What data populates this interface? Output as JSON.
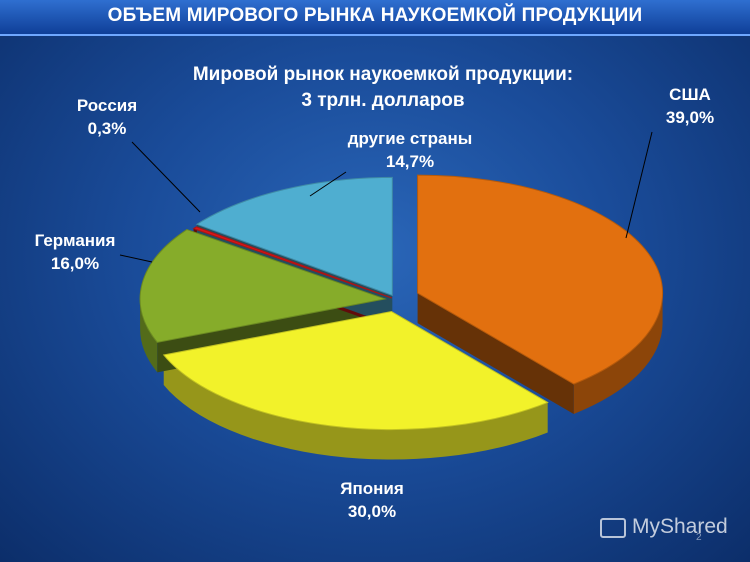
{
  "header": {
    "title": "ОБЪЕМ МИРОВОГО РЫНКА НАУКОЕМКОЙ ПРОДУКЦИИ"
  },
  "chart_data": {
    "type": "pie",
    "title": "Мировой рынок наукоемкой продукции:",
    "subtitle": "3 трлн. долларов",
    "slices": [
      {
        "name": "США",
        "value": 39.0,
        "label": "39,0%",
        "color": "#e2700f"
      },
      {
        "name": "Япония",
        "value": 30.0,
        "label": "30,0%",
        "color": "#f2f22a"
      },
      {
        "name": "Германия",
        "value": 16.0,
        "label": "16,0%",
        "color": "#86ac2a"
      },
      {
        "name": "Россия",
        "value": 0.3,
        "label": "0,3%",
        "color": "#d81818"
      },
      {
        "name": "другие страны",
        "value": 14.7,
        "label": "14,7%",
        "color": "#4faed0"
      }
    ]
  },
  "watermark": {
    "text": "MyShared",
    "icon": "presentation-icon"
  },
  "footer": {
    "slide_number": "2"
  }
}
